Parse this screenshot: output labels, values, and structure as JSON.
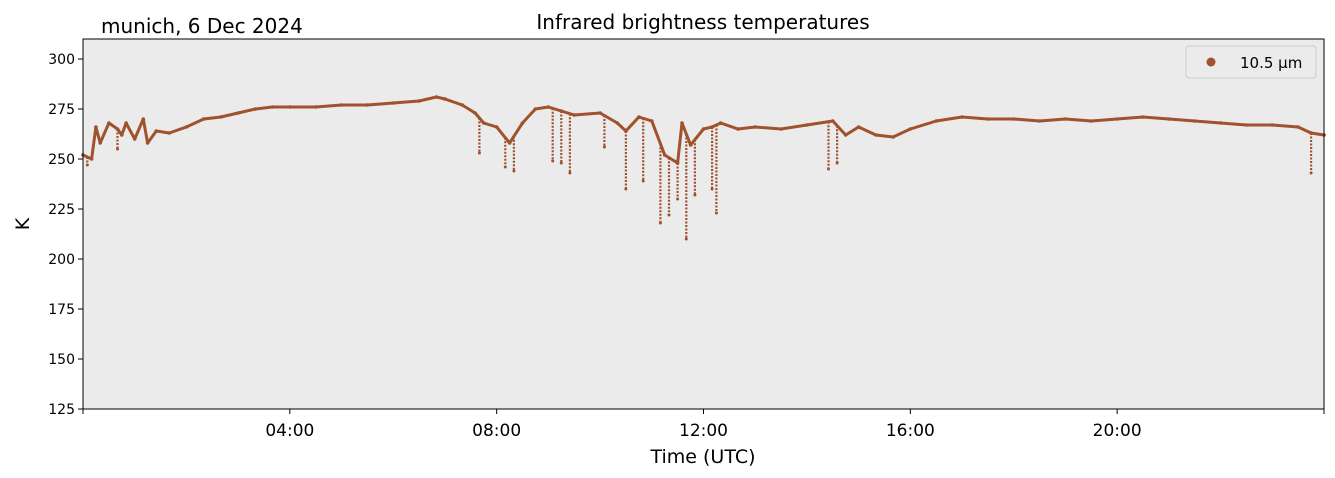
{
  "chart_data": {
    "type": "scatter",
    "title": "Infrared brightness temperatures",
    "subtitle": "munich, 6 Dec 2024",
    "xlabel": "Time (UTC)",
    "ylabel": "K",
    "x_unit": "hours UTC",
    "xlim": [
      "00:00",
      "24:00"
    ],
    "ylim": [
      125,
      310
    ],
    "x_ticks": [
      "04:00",
      "08:00",
      "12:00",
      "16:00",
      "20:00"
    ],
    "y_ticks": [
      125,
      150,
      175,
      200,
      225,
      250,
      275,
      300
    ],
    "grid": false,
    "background": "#ebebeb",
    "legend": {
      "position": "top-right",
      "entries": [
        "10.5 µm"
      ]
    },
    "series": [
      {
        "name": "10.5 µm",
        "color": "#a0522d",
        "marker": "point",
        "x": [
          "00:00",
          "00:10",
          "00:15",
          "00:20",
          "00:30",
          "00:40",
          "00:45",
          "00:50",
          "01:00",
          "01:10",
          "01:15",
          "01:25",
          "01:40",
          "02:00",
          "02:20",
          "02:40",
          "03:00",
          "03:20",
          "03:40",
          "04:00",
          "04:30",
          "05:00",
          "05:30",
          "06:00",
          "06:30",
          "06:50",
          "07:00",
          "07:20",
          "07:35",
          "07:45",
          "08:00",
          "08:15",
          "08:30",
          "08:45",
          "09:00",
          "09:15",
          "09:30",
          "10:00",
          "10:20",
          "10:30",
          "10:45",
          "11:00",
          "11:15",
          "11:30",
          "11:35",
          "11:45",
          "12:00",
          "12:10",
          "12:20",
          "12:40",
          "13:00",
          "13:30",
          "14:00",
          "14:30",
          "14:45",
          "15:00",
          "15:20",
          "15:40",
          "16:00",
          "16:30",
          "17:00",
          "17:30",
          "18:00",
          "18:30",
          "19:00",
          "19:30",
          "20:00",
          "20:30",
          "21:00",
          "21:30",
          "22:00",
          "22:30",
          "23:00",
          "23:30",
          "23:45",
          "24:00"
        ],
        "y": [
          252,
          250,
          266,
          258,
          268,
          265,
          262,
          268,
          260,
          270,
          258,
          264,
          263,
          266,
          270,
          271,
          273,
          275,
          276,
          276,
          276,
          277,
          277,
          278,
          279,
          281,
          280,
          277,
          273,
          268,
          266,
          258,
          268,
          275,
          276,
          274,
          272,
          273,
          268,
          264,
          271,
          269,
          252,
          248,
          268,
          257,
          265,
          266,
          268,
          265,
          266,
          265,
          267,
          269,
          262,
          266,
          262,
          261,
          265,
          269,
          271,
          270,
          270,
          269,
          270,
          269,
          270,
          271,
          270,
          269,
          268,
          267,
          267,
          266,
          263,
          262
        ]
      }
    ],
    "dips": [
      {
        "x": "00:05",
        "min": 247
      },
      {
        "x": "00:40",
        "min": 255
      },
      {
        "x": "07:40",
        "min": 253
      },
      {
        "x": "08:10",
        "min": 246
      },
      {
        "x": "08:20",
        "min": 244
      },
      {
        "x": "09:05",
        "min": 249
      },
      {
        "x": "09:15",
        "min": 248
      },
      {
        "x": "09:25",
        "min": 243
      },
      {
        "x": "10:05",
        "min": 256
      },
      {
        "x": "10:30",
        "min": 235
      },
      {
        "x": "10:50",
        "min": 239
      },
      {
        "x": "11:10",
        "min": 218
      },
      {
        "x": "11:20",
        "min": 222
      },
      {
        "x": "11:30",
        "min": 230
      },
      {
        "x": "11:40",
        "min": 210
      },
      {
        "x": "11:50",
        "min": 232
      },
      {
        "x": "12:10",
        "min": 235
      },
      {
        "x": "12:15",
        "min": 223
      },
      {
        "x": "14:25",
        "min": 245
      },
      {
        "x": "14:35",
        "min": 248
      },
      {
        "x": "23:45",
        "min": 243
      }
    ]
  }
}
